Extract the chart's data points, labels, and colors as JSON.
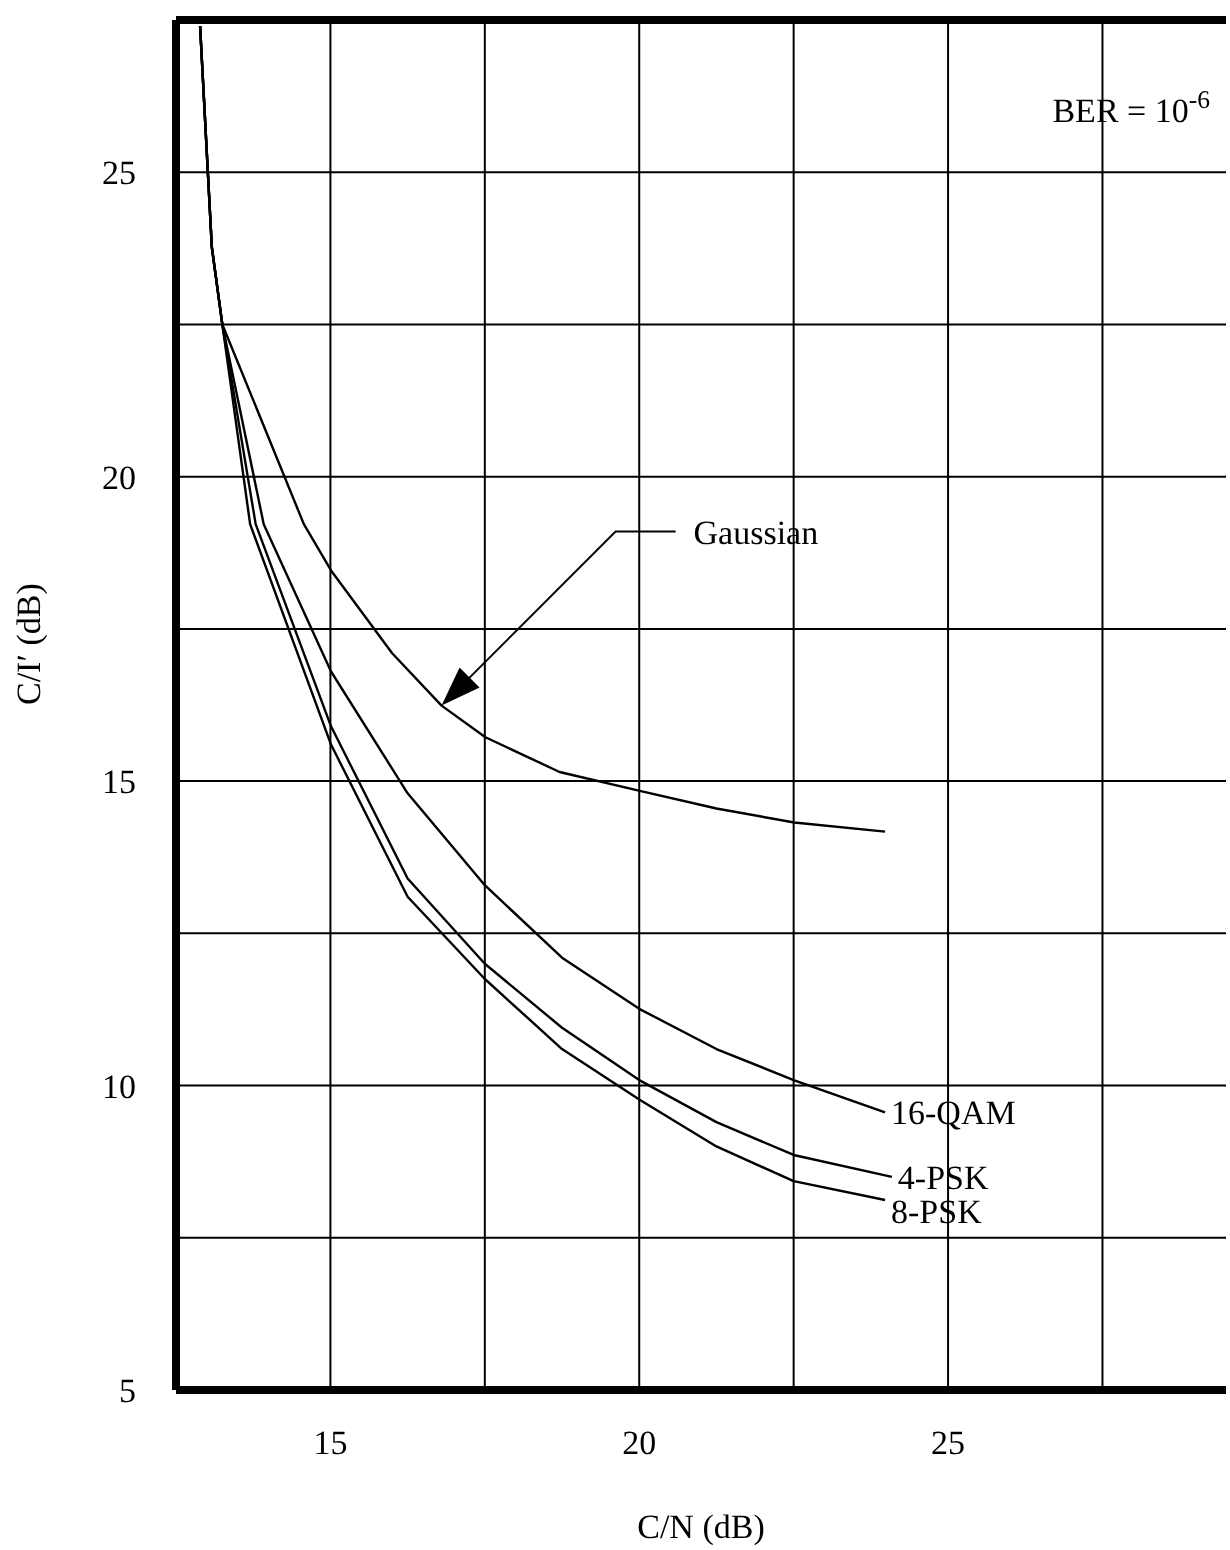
{
  "chart_data": {
    "type": "line",
    "xlabel": "C/N (dB)",
    "ylabel": "C/I′ (dB)",
    "xlim": [
      12.5,
      29.5
    ],
    "xticks": [
      15,
      {
        "value": 17.5,
        "label": null
      },
      20,
      {
        "value": 22.5,
        "label": null
      },
      25,
      {
        "value": 27.5,
        "label": null
      }
    ],
    "ylim": [
      5,
      27.5
    ],
    "yticks": [
      5,
      {
        "value": 7.5,
        "label": null
      },
      10,
      {
        "value": 12.5,
        "label": null
      },
      15,
      {
        "value": 17.5,
        "label": null
      },
      20,
      {
        "value": 22.5,
        "label": null
      },
      25
    ],
    "grid": true,
    "marker": "none",
    "line_style": "solid",
    "series": [
      {
        "color": "#000000",
        "x": [
          12.89,
          13.08,
          13.25,
          14.57,
          15.01,
          16,
          16.8,
          17.51,
          18.71,
          20.01,
          21.25,
          22.51,
          23.98
        ],
        "values": [
          27.4,
          23.77,
          22.5,
          19.22,
          18.46,
          17.1,
          16.24,
          15.72,
          15.15,
          14.84,
          14.55,
          14.32,
          14.17
        ]
      },
      {
        "name": "16-QAM",
        "color": "#000000",
        "x": [
          12.89,
          13.08,
          13.25,
          13.92,
          15.01,
          16.25,
          17.5,
          18.75,
          20,
          21.25,
          22.5,
          23.98
        ],
        "values": [
          27.4,
          23.77,
          22.5,
          19.22,
          16.8,
          14.8,
          13.29,
          12.1,
          11.26,
          10.6,
          10.09,
          9.56
        ]
      },
      {
        "name": "4-PSK",
        "color": "#000000",
        "x": [
          12.89,
          13.08,
          13.25,
          13.79,
          15.01,
          16.25,
          17.5,
          18.75,
          20,
          21.25,
          22.5,
          24.09
        ],
        "values": [
          27.4,
          23.77,
          22.5,
          19.22,
          15.9,
          13.4,
          12,
          10.95,
          10.09,
          9.4,
          8.86,
          8.5
        ]
      },
      {
        "name": "8-PSK",
        "color": "#000000",
        "x": [
          12.89,
          13.08,
          13.25,
          13.7,
          15.01,
          16.25,
          17.5,
          18.75,
          20,
          21.25,
          22.5,
          23.98
        ],
        "values": [
          27.4,
          23.77,
          22.5,
          19.22,
          15.6,
          13.1,
          11.75,
          10.6,
          9.77,
          9,
          8.43,
          8.12
        ]
      }
    ],
    "annotations": [
      "BER = 10$^{-6}$",
      {
        "text": "Gaussian",
        "x": 16.8,
        "y": 16.24
      }
    ]
  }
}
